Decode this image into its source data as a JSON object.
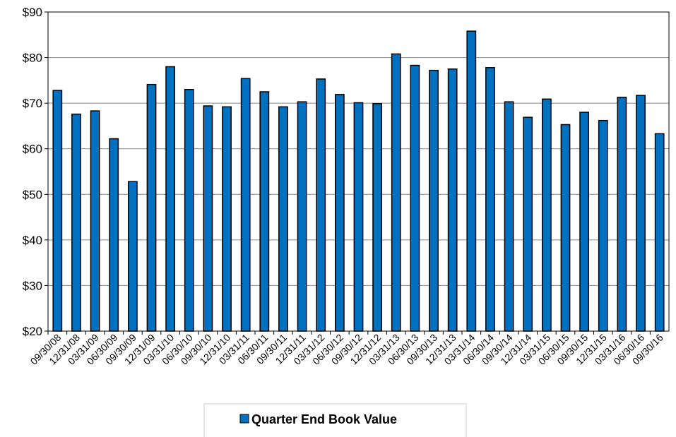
{
  "chart_data": {
    "type": "bar",
    "categories": [
      "09/30/08",
      "12/31/08",
      "03/31/09",
      "06/30/09",
      "09/30/09",
      "12/31/09",
      "03/31/10",
      "06/30/10",
      "09/30/10",
      "12/31/10",
      "03/31/11",
      "06/30/11",
      "09/30/11",
      "12/31/11",
      "03/31/12",
      "06/30/12",
      "09/30/12",
      "12/31/12",
      "03/31/13",
      "06/30/13",
      "09/30/13",
      "12/31/13",
      "03/31/14",
      "06/30/14",
      "09/30/14",
      "12/31/14",
      "03/31/15",
      "06/30/15",
      "09/30/15",
      "12/31/15",
      "03/31/16",
      "06/30/16",
      "09/30/16"
    ],
    "series": [
      {
        "name": "Quarter End Book Value",
        "color": "#0070c0",
        "values": [
          72.8,
          67.6,
          68.3,
          62.2,
          52.8,
          74.1,
          78.0,
          73.0,
          69.4,
          69.2,
          75.4,
          72.5,
          69.2,
          70.3,
          75.3,
          71.9,
          70.1,
          69.9,
          80.8,
          78.3,
          77.2,
          77.5,
          85.8,
          77.8,
          70.3,
          66.9,
          70.9,
          65.3,
          68.0,
          66.2,
          71.3,
          71.7,
          63.3
        ]
      }
    ],
    "ylim": [
      20,
      90
    ],
    "yticks": [
      {
        "value": 20,
        "label": "$20"
      },
      {
        "value": 30,
        "label": "$30"
      },
      {
        "value": 40,
        "label": "$40"
      },
      {
        "value": 50,
        "label": "$50"
      },
      {
        "value": 60,
        "label": "$60"
      },
      {
        "value": 70,
        "label": "$70"
      },
      {
        "value": 80,
        "label": "$80"
      },
      {
        "value": 90,
        "label": "$90"
      }
    ],
    "grid": true,
    "legend": "bottom"
  }
}
